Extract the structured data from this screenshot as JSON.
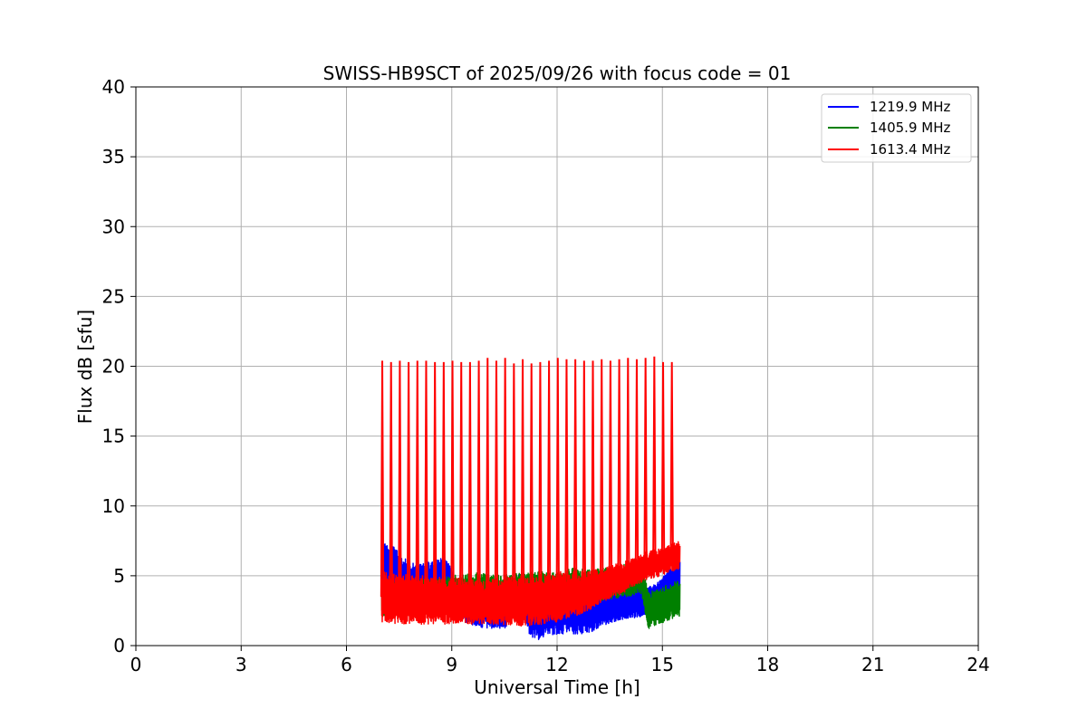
{
  "chart_data": {
    "type": "line",
    "title": "SWISS-HB9SCT of 2025/09/26 with focus code = 01",
    "xlabel": "Universal Time [h]",
    "ylabel": "Flux dB [sfu]",
    "xlim": [
      0,
      24
    ],
    "ylim": [
      0,
      40
    ],
    "xticks": [
      0,
      3,
      6,
      9,
      12,
      15,
      18,
      21,
      24
    ],
    "yticks": [
      0,
      5,
      10,
      15,
      20,
      25,
      30,
      35,
      40
    ],
    "grid": true,
    "legend_position": "top-right",
    "x_range_of_data": [
      7.0,
      15.5
    ],
    "series": [
      {
        "name": "1219.9 MHz",
        "color": "#0000ff",
        "x": [
          7.0,
          7.3,
          7.6,
          8.0,
          8.5,
          8.8,
          9.0,
          9.2,
          9.5,
          9.8,
          10.0,
          10.5,
          10.8,
          11.0,
          11.2,
          11.5,
          11.8,
          12.0,
          12.3,
          12.6,
          13.0,
          13.3,
          13.6,
          14.0,
          14.3,
          14.6,
          14.9,
          15.2,
          15.5
        ],
        "values": [
          5.5,
          5.5,
          4.8,
          4.3,
          4.6,
          4.8,
          4.0,
          3.5,
          3.0,
          2.8,
          2.6,
          2.6,
          3.5,
          3.8,
          2.3,
          2.0,
          2.3,
          2.2,
          2.4,
          2.3,
          2.6,
          2.7,
          2.9,
          3.0,
          3.1,
          3.2,
          3.6,
          4.5,
          5.0
        ],
        "band": [
          1.8,
          1.8,
          1.5,
          1.5,
          1.5,
          1.5,
          1.5,
          1.6,
          1.5,
          1.5,
          1.4,
          1.4,
          1.3,
          1.5,
          1.6,
          1.6,
          1.5,
          1.5,
          1.5,
          1.5,
          1.6,
          1.3,
          1.2,
          1.1,
          1.1,
          1.0,
          1.0,
          1.0,
          1.0
        ]
      },
      {
        "name": "1405.9 MHz",
        "color": "#008000",
        "x": [
          7.0,
          7.5,
          8.0,
          8.5,
          9.0,
          9.5,
          10.0,
          10.5,
          11.0,
          11.5,
          12.0,
          12.5,
          13.0,
          13.5,
          14.0,
          14.4,
          14.6,
          14.9,
          15.2,
          15.5
        ],
        "values": [
          3.3,
          3.5,
          3.6,
          3.7,
          3.8,
          4.0,
          4.0,
          3.9,
          4.0,
          4.1,
          4.0,
          4.3,
          4.2,
          4.5,
          4.7,
          4.9,
          2.5,
          2.8,
          3.1,
          3.4
        ],
        "band": [
          1.2,
          1.2,
          1.2,
          1.2,
          1.2,
          1.2,
          1.2,
          1.2,
          1.2,
          1.2,
          1.2,
          1.3,
          1.2,
          1.2,
          1.2,
          1.2,
          1.3,
          1.3,
          1.3,
          1.3
        ]
      },
      {
        "name": "1613.4 MHz",
        "color": "#ff0000",
        "x": [
          7.0,
          7.5,
          8.0,
          8.5,
          9.0,
          9.5,
          10.0,
          10.5,
          11.0,
          11.5,
          12.0,
          12.5,
          13.0,
          13.5,
          14.0,
          14.5,
          15.0,
          15.5
        ],
        "values": [
          3.5,
          3.3,
          3.3,
          3.2,
          3.2,
          3.1,
          3.1,
          3.2,
          3.2,
          3.3,
          3.5,
          3.7,
          4.0,
          4.5,
          5.0,
          5.7,
          6.0,
          6.5
        ],
        "band": [
          1.8,
          1.8,
          1.8,
          1.7,
          1.7,
          1.6,
          1.6,
          1.7,
          1.8,
          1.8,
          1.8,
          1.6,
          1.4,
          1.2,
          1.1,
          1.0,
          1.0,
          1.0
        ],
        "spike_times": [
          7.02,
          7.27,
          7.52,
          7.77,
          8.02,
          8.27,
          8.52,
          8.77,
          9.02,
          9.27,
          9.52,
          9.77,
          10.02,
          10.27,
          10.52,
          10.77,
          11.02,
          11.27,
          11.52,
          11.77,
          12.02,
          12.27,
          12.52,
          12.77,
          13.02,
          13.27,
          13.52,
          13.77,
          14.02,
          14.27,
          14.52,
          14.77,
          15.02,
          15.27
        ],
        "spike_peaks": [
          20.4,
          20.3,
          20.4,
          20.3,
          20.4,
          20.4,
          20.3,
          20.3,
          20.4,
          20.3,
          20.3,
          20.4,
          20.6,
          20.4,
          20.6,
          20.2,
          20.5,
          20.2,
          20.3,
          20.4,
          20.6,
          20.5,
          20.5,
          20.4,
          20.4,
          20.5,
          20.4,
          20.5,
          20.6,
          20.5,
          20.6,
          20.7,
          20.3,
          20.3
        ]
      }
    ]
  }
}
